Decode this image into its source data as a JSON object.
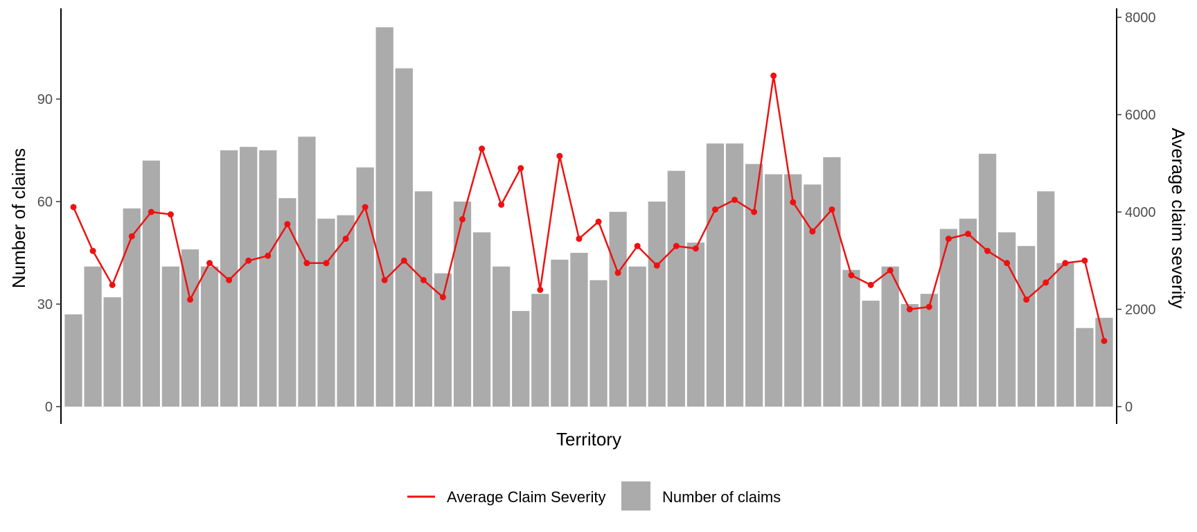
{
  "chart_data": {
    "type": "bar",
    "title": "",
    "xlabel": "Territory",
    "ylabel_left": "Number of claims",
    "ylabel_right": "Average claim severity",
    "ylim_left": [
      0,
      115
    ],
    "ylim_right": [
      0,
      8000
    ],
    "yticks_left": [
      0,
      30,
      60,
      90
    ],
    "yticks_right": [
      0,
      2000,
      4000,
      6000,
      8000
    ],
    "grid": false,
    "legend_position": "bottom",
    "series": [
      {
        "name": "Number of claims",
        "type": "bar",
        "axis": "left",
        "color": "#ababab",
        "values": [
          27,
          41,
          32,
          58,
          72,
          41,
          46,
          41,
          75,
          76,
          75,
          61,
          79,
          55,
          56,
          70,
          111,
          99,
          63,
          39,
          60,
          51,
          41,
          28,
          33,
          43,
          45,
          37,
          57,
          41,
          60,
          69,
          48,
          77,
          77,
          71,
          68,
          68,
          65,
          73,
          40,
          31,
          41,
          30,
          33,
          52,
          55,
          74,
          51,
          47,
          63,
          42,
          23,
          26
        ]
      },
      {
        "name": "Average Claim Severity",
        "type": "line",
        "axis": "right",
        "color": "#ee1111",
        "values": [
          4100,
          3200,
          2500,
          3500,
          4000,
          3950,
          2200,
          2950,
          2600,
          3000,
          3100,
          3750,
          2950,
          2950,
          3450,
          4100,
          2600,
          3000,
          2600,
          2250,
          3850,
          5300,
          4150,
          4900,
          2400,
          5150,
          3450,
          3800,
          2750,
          3300,
          2900,
          3300,
          3250,
          4050,
          4250,
          4000,
          6800,
          4200,
          3600,
          4050,
          2700,
          2500,
          2800,
          2000,
          2050,
          3450,
          3550,
          3200,
          2950,
          2200,
          2550,
          2950,
          3000,
          1350
        ]
      }
    ]
  }
}
